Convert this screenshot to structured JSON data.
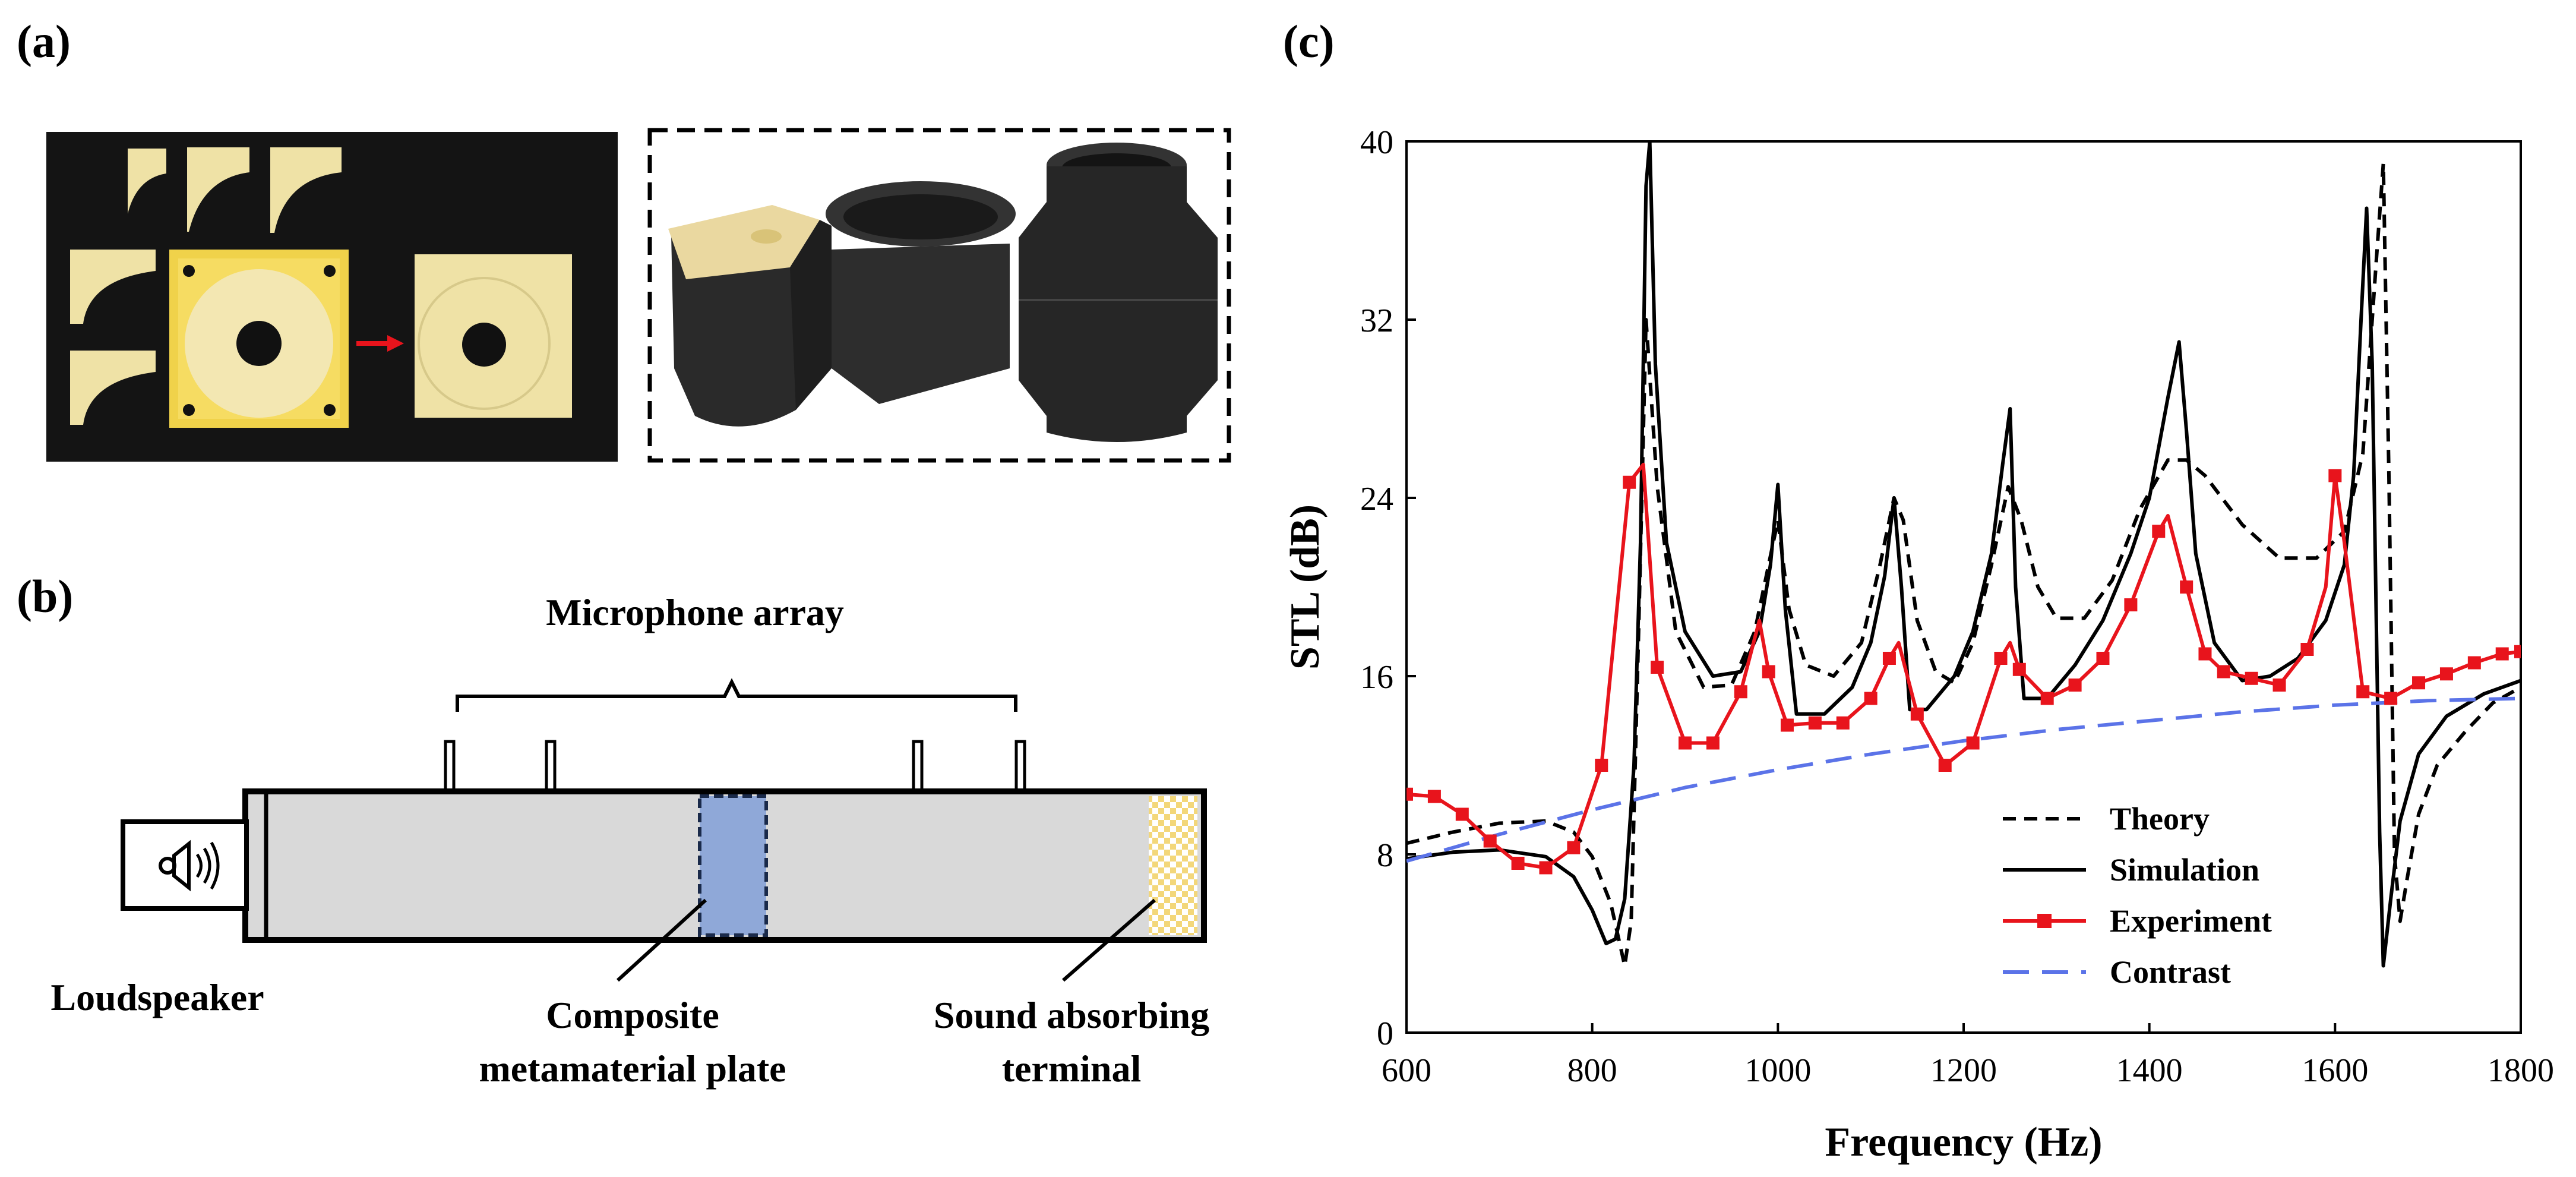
{
  "panels": {
    "a": {
      "label": "(a)"
    },
    "b": {
      "label": "(b)",
      "microphone_array": "Microphone array",
      "loudspeaker": "Loudspeaker",
      "composite_plate": [
        "Composite",
        "metamaterial plate"
      ],
      "absorbing_terminal": [
        "Sound absorbing",
        "terminal"
      ]
    },
    "c": {
      "label": "(c)"
    }
  },
  "colors": {
    "experiment": "#e8141c",
    "contrast": "#5b73e8",
    "tube": "#d9d9d9",
    "plate": "#8fa8d8",
    "terminal": "#f3d77a",
    "photo_bg": "#141414",
    "resin": "#efe2a6"
  },
  "chart_data": {
    "type": "line",
    "xlabel": "Frequency (Hz)",
    "ylabel": "STL (dB)",
    "xlim": [
      600,
      1800
    ],
    "ylim": [
      0,
      40
    ],
    "xticks": [
      "600",
      "800",
      "1000",
      "1200",
      "1400",
      "1600",
      "1800"
    ],
    "yticks": [
      "0",
      "8",
      "16",
      "24",
      "32",
      "40"
    ],
    "legend": [
      "Theory",
      "Simulation",
      "Experiment",
      "Contrast"
    ],
    "series": [
      {
        "name": "Theory",
        "style": "dashed",
        "x": [
          600,
          650,
          700,
          750,
          780,
          800,
          820,
          835,
          842,
          850,
          858,
          870,
          890,
          920,
          950,
          975,
          990,
          1000,
          1012,
          1030,
          1060,
          1090,
          1110,
          1125,
          1135,
          1150,
          1170,
          1190,
          1210,
          1230,
          1248,
          1262,
          1280,
          1300,
          1330,
          1360,
          1390,
          1420,
          1440,
          1460,
          1500,
          1540,
          1580,
          1610,
          1630,
          1645,
          1652,
          1658,
          1664,
          1670,
          1678,
          1690,
          1710,
          1740,
          1770,
          1800
        ],
        "values": [
          8.5,
          9.0,
          9.4,
          9.5,
          9.0,
          7.9,
          5.8,
          3.0,
          5.0,
          18.0,
          32.0,
          24.5,
          18.0,
          15.5,
          15.6,
          18.0,
          21.0,
          23.0,
          19.0,
          16.5,
          16.0,
          17.5,
          21.0,
          24.0,
          23.0,
          18.5,
          16.2,
          15.7,
          17.5,
          21.0,
          24.5,
          23.0,
          20.0,
          18.6,
          18.6,
          20.3,
          23.5,
          25.7,
          25.7,
          25.0,
          22.8,
          21.3,
          21.3,
          22.5,
          26.0,
          35.0,
          39.0,
          25.0,
          8.0,
          5.0,
          7.0,
          9.8,
          12.0,
          13.5,
          14.8,
          15.5
        ]
      },
      {
        "name": "Simulation",
        "style": "solid",
        "x": [
          600,
          650,
          700,
          750,
          780,
          800,
          815,
          825,
          835,
          845,
          852,
          858,
          862,
          868,
          880,
          900,
          930,
          960,
          980,
          992,
          1000,
          1008,
          1020,
          1050,
          1080,
          1100,
          1115,
          1125,
          1133,
          1142,
          1160,
          1190,
          1210,
          1230,
          1242,
          1250,
          1256,
          1265,
          1290,
          1320,
          1350,
          1380,
          1400,
          1420,
          1432,
          1440,
          1450,
          1470,
          1500,
          1530,
          1560,
          1590,
          1610,
          1620,
          1628,
          1634,
          1640,
          1648,
          1652,
          1660,
          1670,
          1690,
          1720,
          1760,
          1800
        ],
        "values": [
          7.8,
          8.1,
          8.2,
          7.9,
          7.0,
          5.5,
          4.0,
          4.2,
          6.0,
          12.0,
          22.0,
          38.0,
          40.0,
          30.0,
          22.0,
          18.0,
          16.0,
          16.2,
          18.0,
          21.0,
          24.6,
          19.0,
          14.3,
          14.3,
          15.5,
          17.5,
          20.5,
          24.0,
          20.0,
          14.5,
          14.5,
          16.0,
          18.0,
          21.5,
          25.5,
          28.0,
          20.0,
          15.0,
          15.0,
          16.5,
          18.5,
          21.5,
          24.0,
          28.5,
          31.0,
          27.0,
          21.5,
          17.5,
          15.8,
          16.0,
          16.8,
          18.5,
          21.0,
          25.0,
          32.0,
          37.0,
          30.0,
          9.0,
          3.0,
          6.0,
          9.5,
          12.5,
          14.2,
          15.2,
          15.8
        ]
      },
      {
        "name": "Experiment",
        "style": "solid-markers",
        "x": [
          600,
          630,
          660,
          690,
          720,
          750,
          780,
          810,
          840,
          855,
          870,
          900,
          930,
          960,
          980,
          990,
          1010,
          1040,
          1070,
          1100,
          1120,
          1130,
          1150,
          1180,
          1210,
          1240,
          1250,
          1260,
          1290,
          1320,
          1350,
          1380,
          1410,
          1420,
          1440,
          1460,
          1480,
          1510,
          1540,
          1570,
          1590,
          1600,
          1610,
          1630,
          1660,
          1690,
          1720,
          1750,
          1780,
          1800
        ],
        "values": [
          10.7,
          10.6,
          9.8,
          8.6,
          7.6,
          7.4,
          8.3,
          12.0,
          24.7,
          25.5,
          16.4,
          13.0,
          13.0,
          15.3,
          18.5,
          16.2,
          13.8,
          13.9,
          13.9,
          15.0,
          16.8,
          17.5,
          14.3,
          12.0,
          13.0,
          16.8,
          17.5,
          16.3,
          15.0,
          15.6,
          16.8,
          19.2,
          22.5,
          23.2,
          20.0,
          17.0,
          16.2,
          15.9,
          15.6,
          17.2,
          20.0,
          25.0,
          22.0,
          15.3,
          15.0,
          15.7,
          16.1,
          16.6,
          17.0,
          17.1
        ]
      },
      {
        "name": "Contrast",
        "style": "long-dashed",
        "x": [
          600,
          700,
          800,
          900,
          1000,
          1100,
          1200,
          1300,
          1400,
          1500,
          1600,
          1700,
          1800
        ],
        "values": [
          7.7,
          8.9,
          10.0,
          11.0,
          11.8,
          12.5,
          13.1,
          13.6,
          14.0,
          14.4,
          14.7,
          14.9,
          15.0
        ]
      }
    ],
    "experiment_marker_x": [
      600,
      630,
      660,
      690,
      720,
      750,
      780,
      810,
      840,
      870,
      900,
      930,
      960,
      990,
      1010,
      1040,
      1070,
      1100,
      1120,
      1150,
      1180,
      1210,
      1240,
      1260,
      1290,
      1320,
      1350,
      1380,
      1410,
      1440,
      1460,
      1480,
      1510,
      1540,
      1570,
      1600,
      1630,
      1660,
      1690,
      1720,
      1750,
      1780,
      1800
    ]
  }
}
